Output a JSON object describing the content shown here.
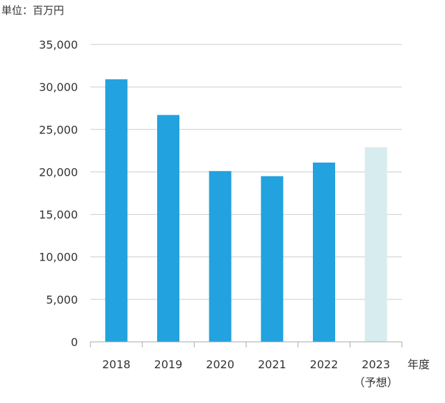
{
  "unit_label": "単位：百万円",
  "x_axis_unit": "年度",
  "chart_data": {
    "type": "bar",
    "title": "",
    "xlabel": "年度",
    "ylabel": "単位：百万円",
    "ylim": [
      0,
      35000
    ],
    "yticks": [
      0,
      5000,
      10000,
      15000,
      20000,
      25000,
      30000,
      35000
    ],
    "ytick_labels": [
      "0",
      "5,000",
      "10,000",
      "15,000",
      "20,000",
      "25,000",
      "30,000",
      "35,000"
    ],
    "categories": [
      "2018",
      "2019",
      "2020",
      "2021",
      "2022",
      "2023"
    ],
    "category_sublabels": [
      "",
      "",
      "",
      "",
      "",
      "（予想）"
    ],
    "values": [
      30900,
      26700,
      20100,
      19500,
      21100,
      22900
    ],
    "bar_colors": [
      "#22a2de",
      "#22a2de",
      "#22a2de",
      "#22a2de",
      "#22a2de",
      "#d7ecee"
    ],
    "grid": true,
    "legend": "none"
  }
}
